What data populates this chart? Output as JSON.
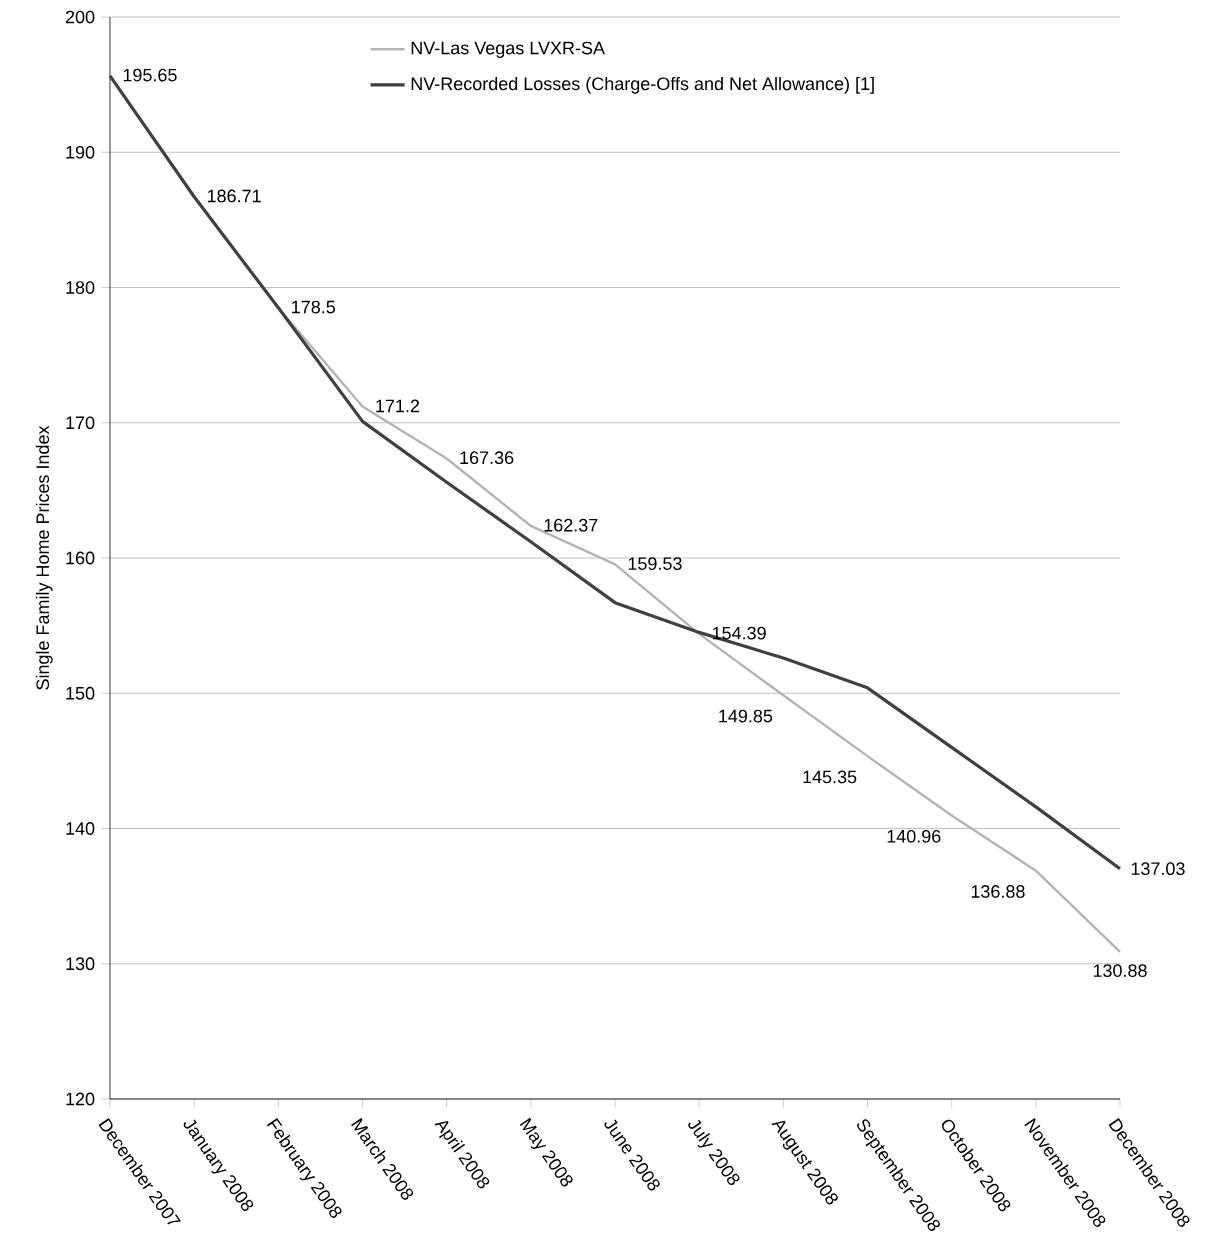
{
  "chart_data": {
    "type": "line",
    "ylabel": "Single Family Home Prices Index",
    "categories": [
      "December 2007",
      "January 2008",
      "February 2008",
      "March 2008",
      "April 2008",
      "May 2008",
      "June 2008",
      "July 2008",
      "August 2008",
      "September 2008",
      "October 2008",
      "November 2008",
      "December 2008"
    ],
    "series": [
      {
        "name": "NV-Las Vegas LVXR-SA",
        "color": "#b4b4b4",
        "values": [
          195.65,
          186.71,
          178.5,
          171.2,
          167.36,
          162.37,
          159.53,
          154.39,
          149.85,
          145.35,
          140.96,
          136.88,
          130.88
        ],
        "value_labels": [
          "195.65",
          "186.71",
          "178.5",
          "171.2",
          "167.36",
          "162.37",
          "159.53",
          "154.39",
          "149.85",
          "145.35",
          "140.96",
          "136.88",
          "130.88"
        ]
      },
      {
        "name": "NV-Recorded Losses (Charge-Offs and Net Allowance) [1]",
        "color": "#404040",
        "values": [
          195.65,
          186.71,
          178.5,
          170.1,
          165.6,
          161.2,
          156.7,
          154.5,
          152.6,
          150.4,
          146.0,
          141.6,
          137.03
        ],
        "value_labels": [
          null,
          null,
          null,
          null,
          null,
          null,
          null,
          null,
          null,
          null,
          null,
          null,
          "137.03"
        ]
      }
    ],
    "ylim": [
      120,
      200
    ],
    "yticks": [
      120,
      130,
      140,
      150,
      160,
      170,
      180,
      190,
      200
    ],
    "grid": "y",
    "legend": "top",
    "marker": "none",
    "line_style": "solid"
  }
}
